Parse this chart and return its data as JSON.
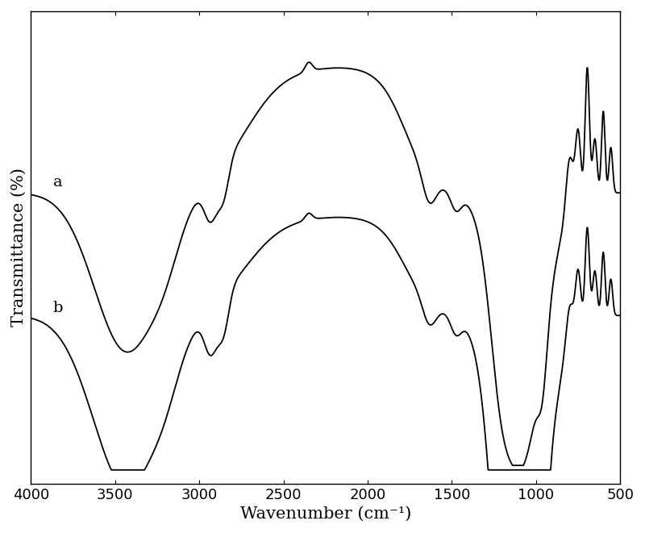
{
  "xlabel": "Wavenumber (cm⁻¹)",
  "ylabel": "Transmittance (%)",
  "label_a": "a",
  "label_b": "b",
  "xlim": [
    4000,
    500
  ],
  "xticks": [
    4000,
    3500,
    3000,
    2500,
    2000,
    1500,
    1000,
    500
  ],
  "background_color": "#ffffff",
  "line_color": "#000000",
  "line_width": 1.3,
  "tick_fontsize": 13,
  "label_fontsize": 15,
  "annotation_fontsize": 14
}
